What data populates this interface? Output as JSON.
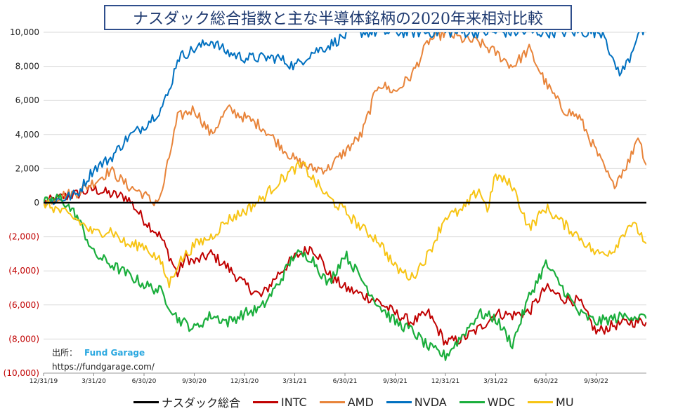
{
  "title": "ナスダック総合指数と主な半導体銘柄の2020年来相対比較",
  "source_label": "出所：",
  "source_name": "Fund Garage",
  "source_url": "https://fundgarage.com/",
  "colors": {
    "nasdaq": "#000000",
    "intc": "#c00000",
    "amd": "#e8843a",
    "nvda": "#0070c0",
    "wdc": "#1aae3c",
    "mu": "#f7c414",
    "source_name": "#2aa8e0",
    "negative_tick": "#c00000"
  },
  "chart_data": {
    "type": "line",
    "title": "ナスダック総合指数と主な半導体銘柄の2020年来相対比較",
    "xlabel": "",
    "ylabel": "",
    "ylim": [
      -10000,
      10000
    ],
    "y_ticks": [
      10000,
      8000,
      6000,
      4000,
      2000,
      0,
      -2000,
      -4000,
      -6000,
      -8000,
      -10000
    ],
    "y_tick_labels": [
      "10,000",
      "8,000",
      "6,000",
      "4,000",
      "2,000",
      "0",
      "(2,000)",
      "(4,000)",
      "(6,000)",
      "(8,000)",
      "(10,000)"
    ],
    "x_ticks": [
      0,
      3,
      6,
      9,
      12,
      15,
      18,
      21,
      24,
      27,
      30,
      33
    ],
    "x_tick_labels": [
      "12/31/19",
      "3/31/20",
      "6/30/20",
      "9/30/20",
      "12/31/20",
      "3/31/21",
      "6/30/21",
      "9/30/21",
      "12/31/21",
      "3/31/22",
      "6/30/22",
      "9/30/22"
    ],
    "x_unit": "months since 12/31/19",
    "xlim": [
      0,
      36
    ],
    "grid": true,
    "legend_position": "bottom",
    "series": [
      {
        "key": "nasdaq",
        "name": "ナスダック総合",
        "color": "#000000",
        "width": 2.6,
        "points": [
          [
            0,
            0
          ],
          [
            36,
            0
          ]
        ]
      },
      {
        "key": "intc",
        "name": "INTC",
        "color": "#c00000",
        "width": 2,
        "points": [
          [
            0,
            0
          ],
          [
            1,
            300
          ],
          [
            2,
            500
          ],
          [
            3,
            800
          ],
          [
            4,
            500
          ],
          [
            5,
            300
          ],
          [
            6,
            -1000
          ],
          [
            7,
            -2000
          ],
          [
            8,
            -4200
          ],
          [
            8.5,
            -3200
          ],
          [
            9,
            -3500
          ],
          [
            10,
            -3000
          ],
          [
            11,
            -3800
          ],
          [
            12,
            -4800
          ],
          [
            13,
            -5500
          ],
          [
            14,
            -4200
          ],
          [
            15,
            -3200
          ],
          [
            16,
            -2600
          ],
          [
            16.5,
            -3200
          ],
          [
            17,
            -4200
          ],
          [
            18,
            -5000
          ],
          [
            19,
            -5400
          ],
          [
            20,
            -5800
          ],
          [
            21,
            -6500
          ],
          [
            22,
            -7000
          ],
          [
            23,
            -6500
          ],
          [
            24,
            -8200
          ],
          [
            25,
            -8000
          ],
          [
            26,
            -7400
          ],
          [
            27,
            -6500
          ],
          [
            28,
            -6600
          ],
          [
            29,
            -6400
          ],
          [
            30,
            -5000
          ],
          [
            31,
            -5600
          ],
          [
            32,
            -5800
          ],
          [
            33,
            -7600
          ],
          [
            34,
            -7200
          ],
          [
            35,
            -7000
          ],
          [
            36,
            -7000
          ]
        ]
      },
      {
        "key": "amd",
        "name": "AMD",
        "color": "#e8843a",
        "width": 2,
        "points": [
          [
            0,
            0
          ],
          [
            1,
            400
          ],
          [
            2,
            600
          ],
          [
            3,
            1200
          ],
          [
            4,
            1900
          ],
          [
            5,
            1000
          ],
          [
            6,
            500
          ],
          [
            6.5,
            0
          ],
          [
            7,
            300
          ],
          [
            8,
            5000
          ],
          [
            9,
            5500
          ],
          [
            10,
            4000
          ],
          [
            11,
            5500
          ],
          [
            12,
            5000
          ],
          [
            13,
            4500
          ],
          [
            14,
            3500
          ],
          [
            15,
            2500
          ],
          [
            16,
            2000
          ],
          [
            17,
            2000
          ],
          [
            18,
            3000
          ],
          [
            19,
            4000
          ],
          [
            20,
            7000
          ],
          [
            21,
            6500
          ],
          [
            22,
            7500
          ],
          [
            23,
            9500
          ],
          [
            24,
            10000
          ],
          [
            25,
            9600
          ],
          [
            26,
            9400
          ],
          [
            27,
            8800
          ],
          [
            28,
            8000
          ],
          [
            29,
            9000
          ],
          [
            30,
            7000
          ],
          [
            31,
            5500
          ],
          [
            32,
            5000
          ],
          [
            33,
            3000
          ],
          [
            34,
            1000
          ],
          [
            35,
            2500
          ],
          [
            35.5,
            4000
          ],
          [
            36,
            2200
          ]
        ]
      },
      {
        "key": "nvda",
        "name": "NVDA",
        "color": "#0070c0",
        "width": 2,
        "points": [
          [
            0,
            0
          ],
          [
            1,
            200
          ],
          [
            2,
            500
          ],
          [
            3,
            2000
          ],
          [
            4,
            2600
          ],
          [
            5,
            3800
          ],
          [
            6,
            4500
          ],
          [
            7,
            5500
          ],
          [
            7.5,
            6500
          ],
          [
            8,
            8500
          ],
          [
            9,
            9000
          ],
          [
            10,
            9500
          ],
          [
            11,
            8800
          ],
          [
            12,
            8500
          ],
          [
            13,
            8500
          ],
          [
            14,
            8500
          ],
          [
            15,
            8000
          ],
          [
            16,
            8800
          ],
          [
            17,
            9200
          ],
          [
            18,
            9800
          ],
          [
            18.5,
            10000
          ],
          [
            33.5,
            10000
          ],
          [
            34,
            8200
          ],
          [
            34.5,
            7600
          ],
          [
            35,
            8500
          ],
          [
            35.5,
            10000
          ],
          [
            36,
            10000
          ]
        ]
      },
      {
        "key": "wdc",
        "name": "WDC",
        "color": "#1aae3c",
        "width": 2.2,
        "points": [
          [
            0,
            0
          ],
          [
            1,
            300
          ],
          [
            2,
            -800
          ],
          [
            3,
            -3000
          ],
          [
            4,
            -3600
          ],
          [
            5,
            -4200
          ],
          [
            6,
            -4800
          ],
          [
            7,
            -5200
          ],
          [
            8,
            -6800
          ],
          [
            9,
            -7400
          ],
          [
            10,
            -6600
          ],
          [
            11,
            -7000
          ],
          [
            12,
            -6500
          ],
          [
            13,
            -6200
          ],
          [
            14,
            -4800
          ],
          [
            15,
            -3000
          ],
          [
            16,
            -3200
          ],
          [
            16.5,
            -4000
          ],
          [
            17,
            -4800
          ],
          [
            18,
            -3000
          ],
          [
            19,
            -4500
          ],
          [
            20,
            -6000
          ],
          [
            21,
            -7000
          ],
          [
            22,
            -7500
          ],
          [
            23,
            -8500
          ],
          [
            24,
            -9000
          ],
          [
            25,
            -7800
          ],
          [
            26,
            -6500
          ],
          [
            27,
            -6800
          ],
          [
            28,
            -8300
          ],
          [
            29,
            -5500
          ],
          [
            30,
            -3600
          ],
          [
            31,
            -5000
          ],
          [
            32,
            -6500
          ],
          [
            33,
            -7000
          ],
          [
            34,
            -6800
          ],
          [
            35,
            -6600
          ],
          [
            36,
            -6800
          ]
        ]
      },
      {
        "key": "mu",
        "name": "MU",
        "color": "#f7c414",
        "width": 2,
        "points": [
          [
            0,
            0
          ],
          [
            1,
            -500
          ],
          [
            2,
            -1000
          ],
          [
            3,
            -1800
          ],
          [
            4,
            -1600
          ],
          [
            5,
            -2500
          ],
          [
            6,
            -2500
          ],
          [
            7,
            -3500
          ],
          [
            7.5,
            -4800
          ],
          [
            8,
            -3600
          ],
          [
            9,
            -2500
          ],
          [
            10,
            -2000
          ],
          [
            11,
            -1000
          ],
          [
            12,
            -500
          ],
          [
            13,
            200
          ],
          [
            14,
            1200
          ],
          [
            15,
            2000
          ],
          [
            15.5,
            2200
          ],
          [
            16,
            1500
          ],
          [
            17,
            300
          ],
          [
            18,
            -500
          ],
          [
            19,
            -1500
          ],
          [
            20,
            -2200
          ],
          [
            21,
            -3800
          ],
          [
            22,
            -4400
          ],
          [
            23,
            -3000
          ],
          [
            24,
            -800
          ],
          [
            25,
            -500
          ],
          [
            26,
            800
          ],
          [
            26.5,
            -400
          ],
          [
            27,
            1600
          ],
          [
            28,
            1000
          ],
          [
            29,
            -1500
          ],
          [
            30,
            -300
          ],
          [
            31,
            -1200
          ],
          [
            32,
            -2000
          ],
          [
            33,
            -3000
          ],
          [
            34,
            -2800
          ],
          [
            35,
            -1200
          ],
          [
            35.5,
            -1600
          ],
          [
            36,
            -2400
          ]
        ]
      }
    ]
  },
  "legend": [
    {
      "label": "ナスダック総合",
      "color": "#000000"
    },
    {
      "label": "INTC",
      "color": "#c00000"
    },
    {
      "label": "AMD",
      "color": "#e8843a"
    },
    {
      "label": "NVDA",
      "color": "#0070c0"
    },
    {
      "label": "WDC",
      "color": "#1aae3c"
    },
    {
      "label": "MU",
      "color": "#f7c414"
    }
  ]
}
